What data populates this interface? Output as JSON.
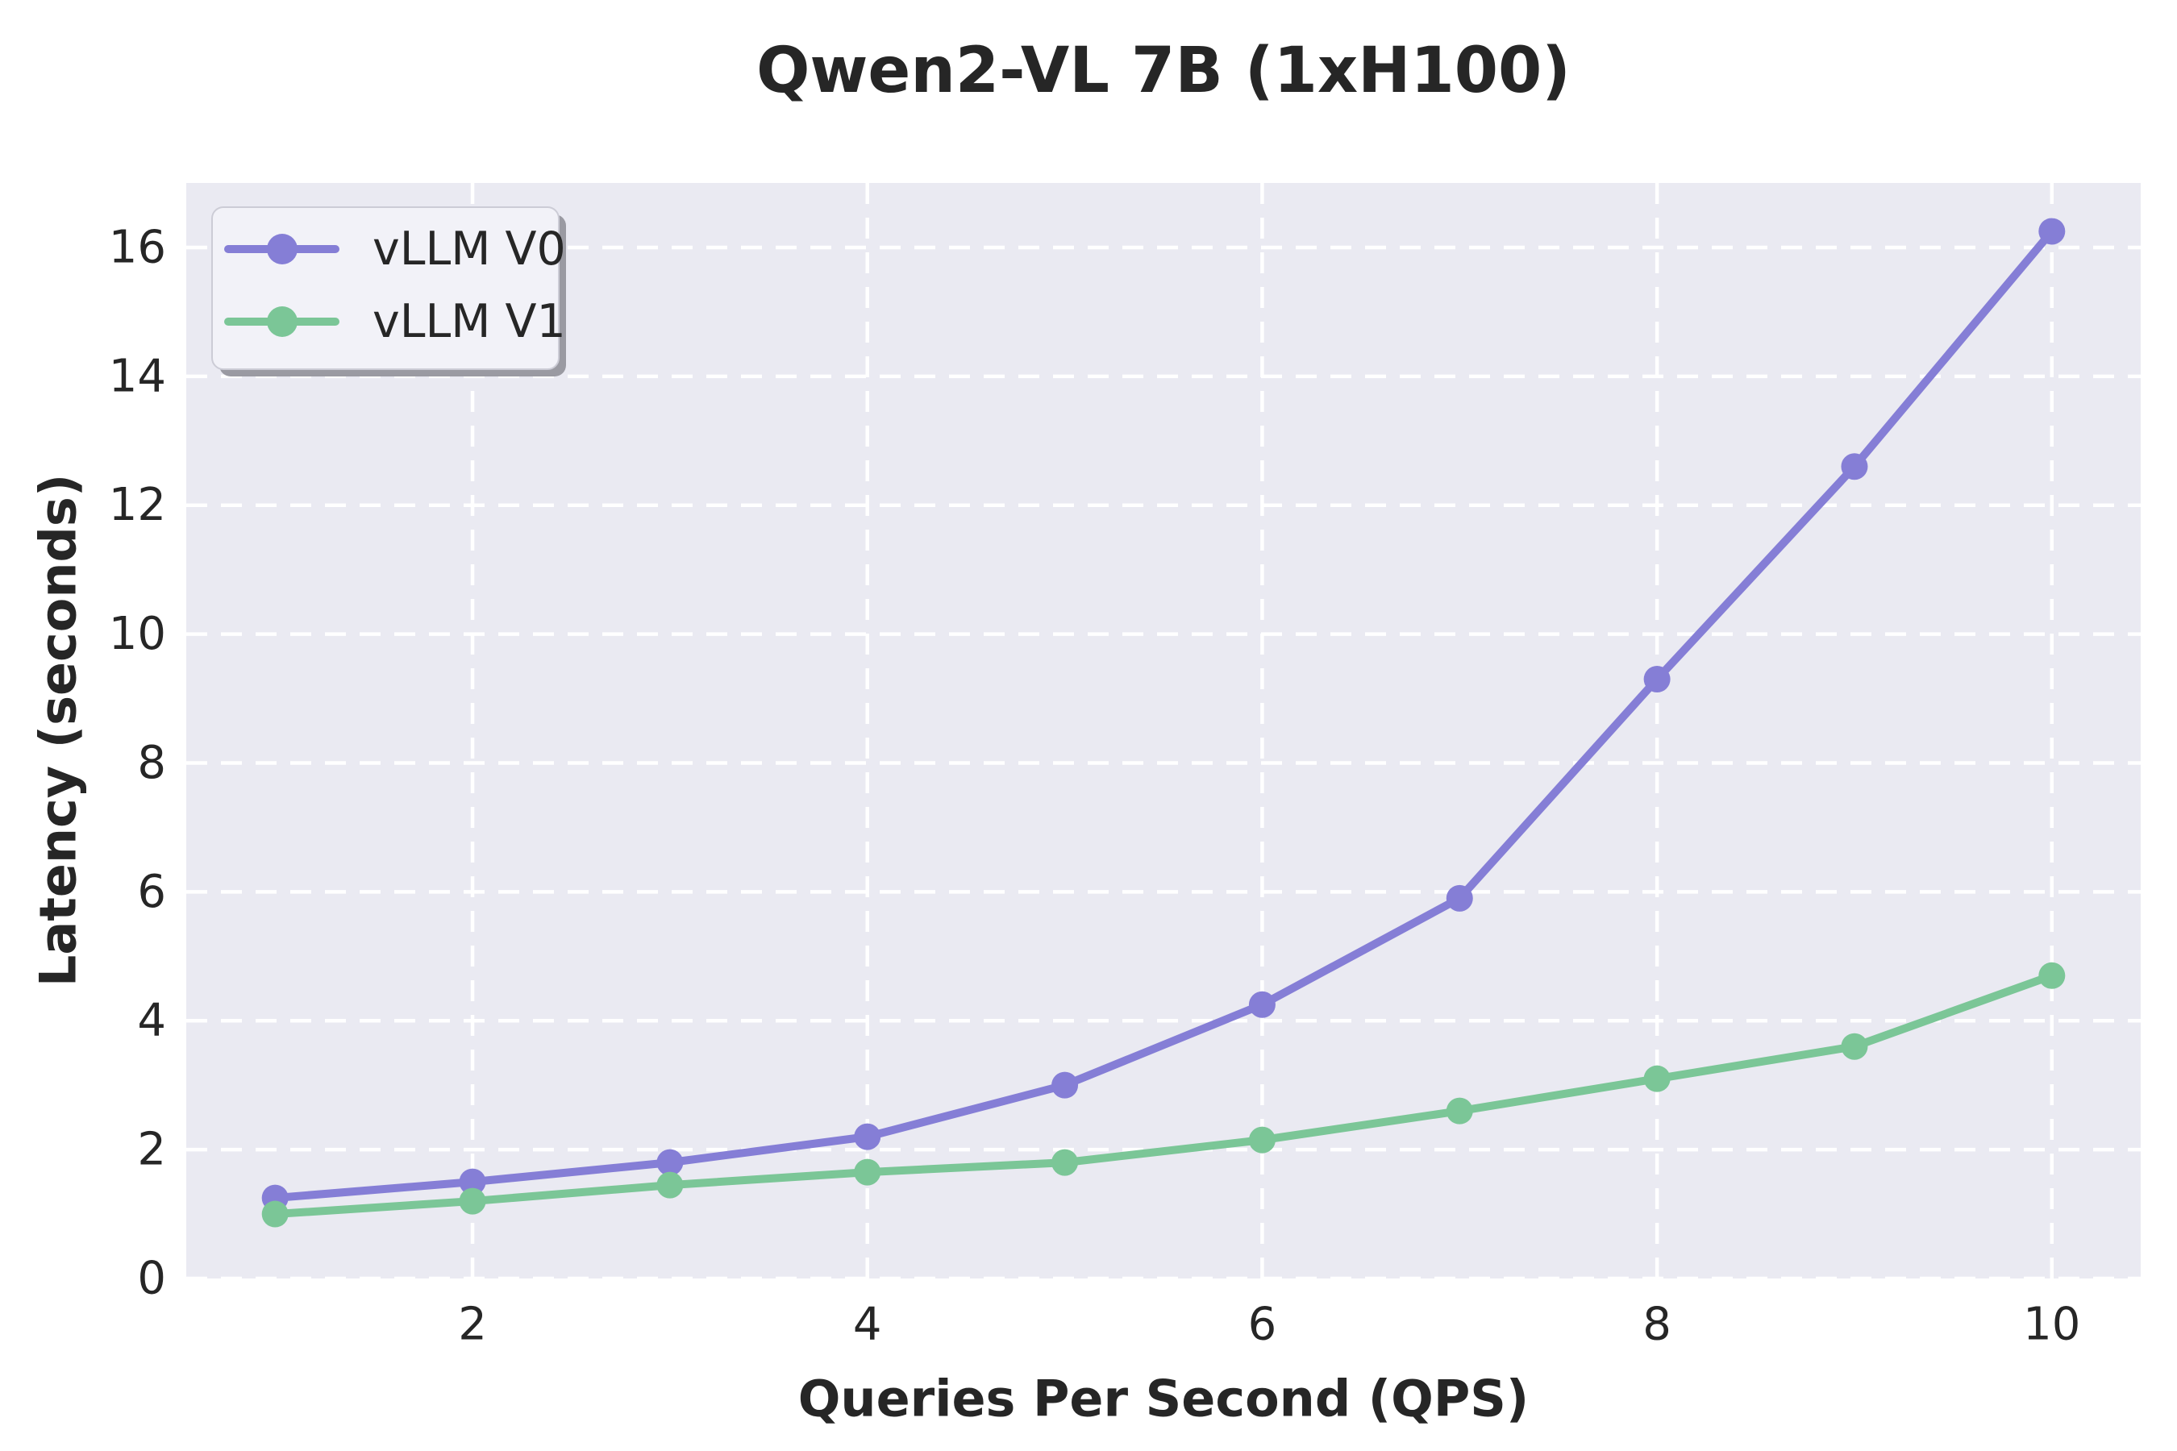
{
  "chart_data": {
    "type": "line",
    "title": "Qwen2-VL 7B (1xH100)",
    "xlabel": "Queries Per Second (QPS)",
    "ylabel": "Latency (seconds)",
    "x": [
      1,
      2,
      3,
      4,
      5,
      6,
      7,
      8,
      9,
      10
    ],
    "series": [
      {
        "name": "vLLM V0",
        "color": "#857ED6",
        "values": [
          1.25,
          1.5,
          1.8,
          2.2,
          3.0,
          4.25,
          5.9,
          9.3,
          12.6,
          16.25
        ]
      },
      {
        "name": "vLLM V1",
        "color": "#7BC697",
        "values": [
          1.0,
          1.2,
          1.45,
          1.65,
          1.8,
          2.15,
          2.6,
          3.1,
          3.6,
          4.7
        ]
      }
    ],
    "xticks": [
      "2",
      "4",
      "6",
      "8",
      "10"
    ],
    "xtick_values": [
      2,
      4,
      6,
      8,
      10
    ],
    "yticks": [
      "0",
      "2",
      "4",
      "6",
      "8",
      "10",
      "12",
      "14",
      "16"
    ],
    "ytick_values": [
      0,
      2,
      4,
      6,
      8,
      10,
      12,
      14,
      16
    ],
    "xlim": [
      0.55,
      10.45
    ],
    "ylim": [
      0,
      17
    ],
    "grid": true,
    "grid_style": "dashed",
    "grid_color": "#FFFFFF",
    "background": "#EAEAF2",
    "figure_background": "#FFFFFF",
    "text_color": "#262626",
    "legend_position": "upper left"
  }
}
